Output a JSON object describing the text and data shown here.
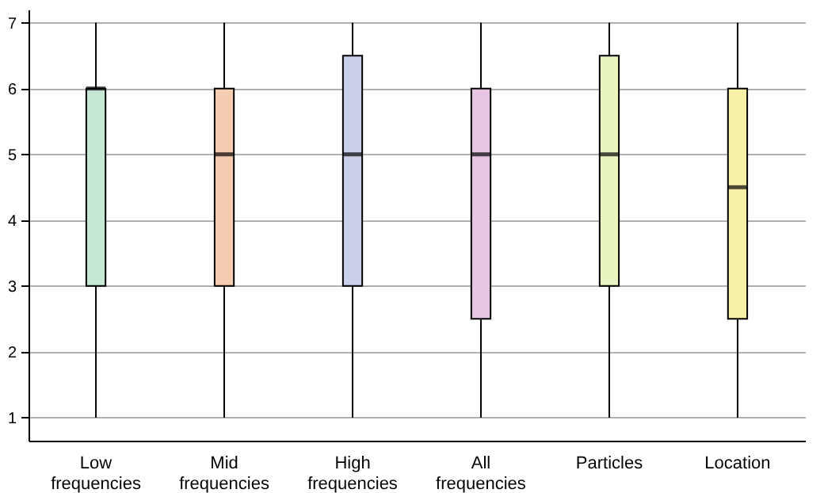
{
  "chart_data": {
    "type": "box",
    "categories": [
      "Low frequencies",
      "Mid frequencies",
      "High frequencies",
      "All frequencies",
      "Particles",
      "Location"
    ],
    "boxes": [
      {
        "low": 1,
        "q1": 3,
        "median": 6,
        "q3": 6,
        "high": 7
      },
      {
        "low": 1,
        "q1": 3,
        "median": 5,
        "q3": 6,
        "high": 7
      },
      {
        "low": 1,
        "q1": 3,
        "median": 5,
        "q3": 6.5,
        "high": 7
      },
      {
        "low": 1,
        "q1": 2.5,
        "median": 5,
        "q3": 6,
        "high": 7
      },
      {
        "low": 1,
        "q1": 3,
        "median": 5,
        "q3": 6.5,
        "high": 7
      },
      {
        "low": 1,
        "q1": 2.5,
        "median": 4.5,
        "q3": 6,
        "high": 7
      }
    ],
    "colors": [
      "#c5e7d3",
      "#f5cdb0",
      "#c9cfe8",
      "#e6c5e2",
      "#e9f5c1",
      "#f9f0a8"
    ],
    "ylim": [
      0.65,
      7.2
    ],
    "yticks": [
      1,
      2,
      3,
      4,
      5,
      6,
      7
    ],
    "grid": "y"
  }
}
